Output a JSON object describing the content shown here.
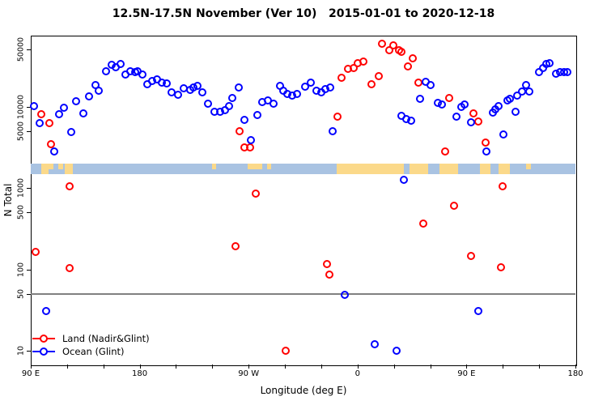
{
  "chart_data": {
    "type": "scatter",
    "title": "12.5N-17.5N November (Ver 10)   2015-01-01 to 2020-12-18",
    "xlabel": "Longitude (deg E)",
    "ylabel": "N Total",
    "y_scale": "log10",
    "ylim": [
      8,
      80000
    ],
    "y_ticks": [
      10,
      50,
      100,
      500,
      1000,
      5000,
      10000,
      50000
    ],
    "x_ticks": [
      {
        "deg": 90,
        "label": "90 E"
      },
      {
        "deg": 180,
        "label": "180"
      },
      {
        "deg": 270,
        "label": "90 W"
      },
      {
        "deg": 360,
        "label": "0"
      },
      {
        "deg": 450,
        "label": "90 E"
      },
      {
        "deg": 540,
        "label": "180"
      }
    ],
    "x_minor_tick_step_deg": 30,
    "x_range_deg_east": [
      90,
      540
    ],
    "grid": false,
    "legend_position": "bottom-left",
    "reference_line": {
      "value": 50,
      "color": "#808080"
    },
    "map_strip": {
      "description": "world-map band of the 12.5N-17.5N latitude zone",
      "value_range": [
        1480,
        1990
      ],
      "ocean_color": "#a9c3e2",
      "land_color": "#fbd98a",
      "land_segments_deg": [
        {
          "from": 99,
          "to": 105,
          "part": "full"
        },
        {
          "from": 105,
          "to": 109,
          "part": "top"
        },
        {
          "from": 113,
          "to": 117,
          "part": "top"
        },
        {
          "from": 118,
          "to": 125,
          "part": "full"
        },
        {
          "from": 240,
          "to": 243,
          "part": "top"
        },
        {
          "from": 269,
          "to": 281.5,
          "part": "top"
        },
        {
          "from": 285,
          "to": 288.5,
          "part": "top"
        },
        {
          "from": 342.5,
          "to": 398,
          "part": "full"
        },
        {
          "from": 403,
          "to": 418,
          "part": "full"
        },
        {
          "from": 428,
          "to": 443,
          "part": "full"
        },
        {
          "from": 461,
          "to": 470,
          "part": "full"
        },
        {
          "from": 476.5,
          "to": 486,
          "part": "full"
        },
        {
          "from": 499,
          "to": 503,
          "part": "top"
        }
      ]
    },
    "series": [
      {
        "name": "Land (Nadir&Glint)",
        "color": "#ff0000",
        "marker": "open-circle",
        "points": [
          [
            94,
            164
          ],
          [
            98.5,
            8040
          ],
          [
            105.5,
            6250
          ],
          [
            106.5,
            3440
          ],
          [
            122,
            1050
          ],
          [
            122,
            104
          ],
          [
            259.5,
            192
          ],
          [
            262.5,
            4970
          ],
          [
            266.5,
            3140
          ],
          [
            271.5,
            3140
          ],
          [
            276,
            851
          ],
          [
            300.5,
            10
          ],
          [
            334.5,
            116
          ],
          [
            336.5,
            86
          ],
          [
            343.5,
            7510
          ],
          [
            346.5,
            22500
          ],
          [
            352,
            29000
          ],
          [
            356.5,
            29700
          ],
          [
            360,
            34000
          ],
          [
            364.5,
            35600
          ],
          [
            371.5,
            18800
          ],
          [
            377.5,
            23600
          ],
          [
            380.5,
            59000
          ],
          [
            386,
            49100
          ],
          [
            389.5,
            56400
          ],
          [
            394,
            49100
          ],
          [
            396,
            46900
          ],
          [
            401.5,
            31100
          ],
          [
            405.5,
            39000
          ],
          [
            410,
            19700
          ],
          [
            414,
            365
          ],
          [
            432.5,
            2800
          ],
          [
            436,
            12700
          ],
          [
            440,
            604
          ],
          [
            453.5,
            146
          ],
          [
            456,
            8220
          ],
          [
            460,
            6550
          ],
          [
            465.5,
            3610
          ],
          [
            478.5,
            106
          ],
          [
            480,
            1050
          ]
        ]
      },
      {
        "name": "Ocean (Glint)",
        "color": "#0000ff",
        "marker": "open-circle",
        "points": [
          [
            92.5,
            10100
          ],
          [
            97.5,
            6250
          ],
          [
            102.5,
            31
          ],
          [
            109.5,
            2800
          ],
          [
            113.5,
            8040
          ],
          [
            117.5,
            9660
          ],
          [
            123.5,
            4860
          ],
          [
            127.5,
            11600
          ],
          [
            133.5,
            8220
          ],
          [
            138,
            13300
          ],
          [
            143.5,
            18400
          ],
          [
            146.5,
            15600
          ],
          [
            152.5,
            27100
          ],
          [
            157,
            32500
          ],
          [
            160.5,
            30400
          ],
          [
            164,
            33300
          ],
          [
            168,
            24700
          ],
          [
            172,
            27100
          ],
          [
            176,
            26500
          ],
          [
            178.5,
            27100
          ],
          [
            182.5,
            24700
          ],
          [
            186.5,
            18800
          ],
          [
            190.5,
            20600
          ],
          [
            194.5,
            21500
          ],
          [
            198.5,
            19700
          ],
          [
            202.5,
            19000
          ],
          [
            206.5,
            14900
          ],
          [
            212,
            13900
          ],
          [
            216.5,
            16700
          ],
          [
            221.5,
            16000
          ],
          [
            224.5,
            17100
          ],
          [
            227.5,
            17900
          ],
          [
            232,
            14900
          ],
          [
            236.5,
            10800
          ],
          [
            242,
            8610
          ],
          [
            246.5,
            8610
          ],
          [
            250.5,
            9020
          ],
          [
            253.5,
            10100
          ],
          [
            256.5,
            12700
          ],
          [
            262,
            17100
          ],
          [
            266.5,
            6860
          ],
          [
            272,
            3860
          ],
          [
            277.5,
            7870
          ],
          [
            281.5,
            11300
          ],
          [
            286,
            11900
          ],
          [
            290.5,
            10800
          ],
          [
            296,
            17900
          ],
          [
            298.5,
            15600
          ],
          [
            302,
            14300
          ],
          [
            306,
            13600
          ],
          [
            310,
            14300
          ],
          [
            316.5,
            17500
          ],
          [
            321.5,
            19700
          ],
          [
            326,
            15600
          ],
          [
            330,
            14900
          ],
          [
            333.5,
            16400
          ],
          [
            337.5,
            17100
          ],
          [
            339.5,
            4970
          ],
          [
            349.5,
            49
          ],
          [
            374,
            12
          ],
          [
            392.5,
            10
          ],
          [
            396.5,
            7690
          ],
          [
            398.5,
            1260
          ],
          [
            400,
            7020
          ],
          [
            404,
            6700
          ],
          [
            411.5,
            12400
          ],
          [
            416,
            20100
          ],
          [
            420,
            18400
          ],
          [
            426,
            11100
          ],
          [
            430,
            10600
          ],
          [
            441.5,
            7510
          ],
          [
            445.5,
            9900
          ],
          [
            448.5,
            10600
          ],
          [
            454,
            6400
          ],
          [
            460,
            31
          ],
          [
            466.5,
            2800
          ],
          [
            471.5,
            8410
          ],
          [
            473.5,
            9230
          ],
          [
            476.5,
            10100
          ],
          [
            480.5,
            4540
          ],
          [
            484,
            11900
          ],
          [
            486,
            12400
          ],
          [
            490.5,
            8610
          ],
          [
            492,
            13600
          ],
          [
            496,
            15300
          ],
          [
            499.5,
            18400
          ],
          [
            502,
            15300
          ],
          [
            510,
            26500
          ],
          [
            513.5,
            29700
          ],
          [
            516,
            33300
          ],
          [
            518.5,
            34000
          ],
          [
            524,
            25300
          ],
          [
            527.5,
            26500
          ],
          [
            530.5,
            26500
          ],
          [
            533.5,
            26500
          ]
        ]
      }
    ]
  }
}
